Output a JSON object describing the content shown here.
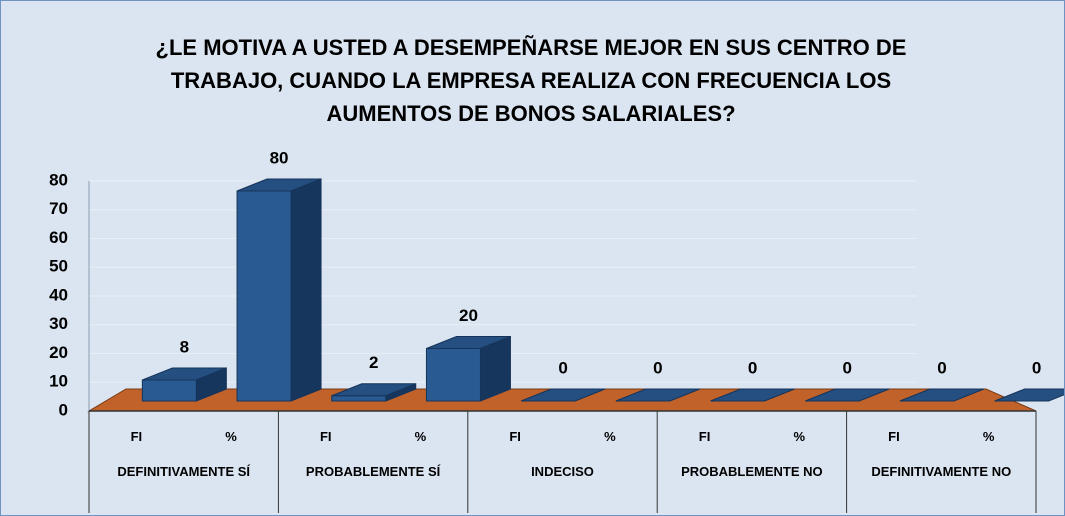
{
  "chart_data": {
    "type": "bar3d",
    "title": "¿LE MOTIVA A USTED A DESEMPEÑARSE MEJOR EN SUS CENTRO DE TRABAJO, CUANDO LA EMPRESA REALIZA CON FRECUENCIA LOS AUMENTOS DE BONOS SALARIALES?",
    "groups": [
      "DEFINITIVAMENTE SÍ",
      "PROBABLEMENTE SÍ",
      "INDECISO",
      "PROBABLEMENTE NO",
      "DEFINITIVAMENTE NO"
    ],
    "categories": [
      "FI",
      "%",
      "FI",
      "%",
      "FI",
      "%",
      "FI",
      "%",
      "FI",
      "%"
    ],
    "values": [
      8,
      80,
      2,
      20,
      0,
      0,
      0,
      0,
      0,
      0
    ],
    "color": "#2a5a92",
    "floor_color": "#c0622a",
    "ylim": [
      0,
      80
    ],
    "yticks": [
      0,
      10,
      20,
      30,
      40,
      50,
      60,
      70,
      80
    ],
    "grid": true
  }
}
